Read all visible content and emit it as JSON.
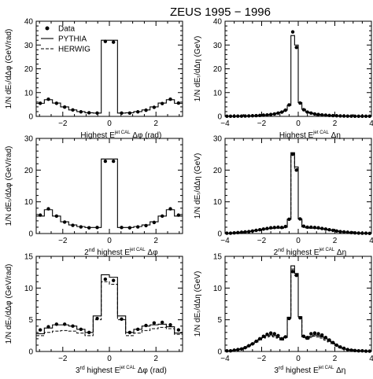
{
  "figure": {
    "title": "ZEUS 1995 − 1996",
    "legend": [
      {
        "label": "Data",
        "style": "dot"
      },
      {
        "label": "PYTHIA",
        "style": "solid"
      },
      {
        "label": "HERWIG",
        "style": "dashed"
      }
    ]
  },
  "chart_data": [
    {
      "type": "histogram",
      "variable": "dphi",
      "xlim": [
        -3.1416,
        3.1416
      ],
      "ylim": [
        0,
        40
      ],
      "xticks": [
        -2,
        0,
        2
      ],
      "yticks": [
        0,
        10,
        20,
        30,
        40
      ],
      "ylabel": "1/N dEₜ/dΔφ (GeV/rad)",
      "xlabel_prefix": "Highest E",
      "xlabel_sup": "jet CAL",
      "xlabel_var": "Δφ (rad)",
      "bin_width": 0.3491,
      "data": [
        5.5,
        7.2,
        5.5,
        3.9,
        2.7,
        1.9,
        1.5,
        1.4,
        31.5,
        31.2,
        1.4,
        1.4,
        1.9,
        2.6,
        3.8,
        5.4,
        7.2,
        5.6
      ],
      "pythia": [
        5.5,
        7.0,
        5.6,
        4.0,
        2.7,
        2.0,
        1.5,
        1.4,
        32.0,
        32.0,
        1.4,
        1.5,
        2.0,
        2.7,
        4.0,
        5.6,
        7.0,
        5.5
      ],
      "herwig": null
    },
    {
      "type": "histogram",
      "variable": "deta",
      "xlim": [
        -4,
        4
      ],
      "ylim": [
        0,
        40
      ],
      "xticks": [
        -4,
        -2,
        0,
        2,
        4
      ],
      "yticks": [
        0,
        10,
        20,
        30,
        40
      ],
      "ylabel": "1/N dEₜ/dΔη (GeV)",
      "xlabel_prefix": "Highest E",
      "xlabel_sup": "jet CAL",
      "xlabel_var": "Δη",
      "bin_width": 0.2,
      "data": [
        0.05,
        0.05,
        0.05,
        0.1,
        0.1,
        0.15,
        0.2,
        0.25,
        0.3,
        0.4,
        0.5,
        0.6,
        0.8,
        1.0,
        1.4,
        1.8,
        2.6,
        4.8,
        35.5,
        29.0,
        5.6,
        2.8,
        1.8,
        1.4,
        1.0,
        0.8,
        0.6,
        0.5,
        0.4,
        0.3,
        0.25,
        0.2,
        0.15,
        0.1,
        0.1,
        0.05,
        0.05,
        0.05,
        0.05,
        0.05
      ],
      "pythia": [
        0.05,
        0.05,
        0.05,
        0.1,
        0.1,
        0.15,
        0.2,
        0.25,
        0.3,
        0.4,
        0.5,
        0.6,
        0.8,
        1.0,
        1.4,
        1.8,
        2.6,
        4.6,
        34.0,
        30.0,
        5.8,
        3.0,
        1.8,
        1.4,
        1.0,
        0.8,
        0.6,
        0.5,
        0.4,
        0.3,
        0.25,
        0.2,
        0.15,
        0.1,
        0.1,
        0.05,
        0.05,
        0.05,
        0.05,
        0.05
      ],
      "herwig": null
    },
    {
      "type": "histogram",
      "variable": "dphi",
      "xlim": [
        -3.1416,
        3.1416
      ],
      "ylim": [
        0,
        30
      ],
      "xticks": [
        -2,
        0,
        2
      ],
      "yticks": [
        0,
        10,
        20,
        30
      ],
      "ylabel": "1/N dEₜ/dΔφ (GeV/rad)",
      "xlabel_prefix": "2",
      "xlabel_ord": "nd",
      "xlabel_mid": " highest E",
      "xlabel_sup": "jet CAL",
      "xlabel_var": "Δφ",
      "bin_width": 0.3491,
      "data": [
        5.8,
        7.8,
        5.5,
        3.6,
        2.6,
        2.1,
        1.8,
        1.9,
        22.8,
        22.8,
        1.9,
        1.8,
        2.1,
        2.5,
        3.5,
        5.5,
        7.8,
        5.8
      ],
      "pythia": [
        5.5,
        7.5,
        5.5,
        3.7,
        2.7,
        2.2,
        1.9,
        1.9,
        23.5,
        23.5,
        1.9,
        1.9,
        2.2,
        2.7,
        3.7,
        5.5,
        7.5,
        5.5
      ],
      "herwig": null
    },
    {
      "type": "histogram",
      "variable": "deta",
      "xlim": [
        -4,
        4
      ],
      "ylim": [
        0,
        30
      ],
      "xticks": [
        -4,
        -2,
        0,
        2,
        4
      ],
      "yticks": [
        0,
        10,
        20,
        30
      ],
      "ylabel": "1/N dEₜ/dΔη (GeV)",
      "xlabel_prefix": "2",
      "xlabel_ord": "nd",
      "xlabel_mid": " highest E",
      "xlabel_sup": "jet CAL",
      "xlabel_var": "Δη",
      "bin_width": 0.2,
      "data": [
        0.1,
        0.1,
        0.2,
        0.3,
        0.4,
        0.5,
        0.6,
        0.8,
        1.0,
        1.2,
        1.4,
        1.6,
        1.8,
        1.9,
        2.0,
        1.9,
        2.2,
        4.5,
        25.0,
        20.0,
        4.6,
        2.3,
        2.0,
        2.0,
        1.9,
        1.8,
        1.6,
        1.4,
        1.2,
        1.0,
        0.8,
        0.6,
        0.5,
        0.4,
        0.3,
        0.2,
        0.15,
        0.1,
        0.1,
        0.05
      ],
      "pythia": [
        0.1,
        0.1,
        0.2,
        0.3,
        0.4,
        0.5,
        0.6,
        0.8,
        1.0,
        1.1,
        1.3,
        1.5,
        1.6,
        1.7,
        1.8,
        1.7,
        2.0,
        4.5,
        25.5,
        21.0,
        4.6,
        2.1,
        1.8,
        1.7,
        1.7,
        1.6,
        1.5,
        1.3,
        1.1,
        1.0,
        0.8,
        0.6,
        0.5,
        0.4,
        0.3,
        0.2,
        0.15,
        0.1,
        0.1,
        0.05
      ],
      "herwig": [
        0.1,
        0.1,
        0.2,
        0.3,
        0.4,
        0.5,
        0.6,
        0.8,
        1.0,
        1.1,
        1.3,
        1.5,
        1.6,
        1.7,
        1.8,
        1.7,
        2.0,
        4.5,
        25.0,
        20.5,
        4.6,
        2.1,
        1.8,
        1.7,
        1.7,
        1.6,
        1.5,
        1.3,
        1.1,
        1.0,
        0.8,
        0.6,
        0.5,
        0.4,
        0.3,
        0.2,
        0.15,
        0.1,
        0.1,
        0.05
      ]
    },
    {
      "type": "histogram",
      "variable": "dphi",
      "xlim": [
        -3.1416,
        3.1416
      ],
      "ylim": [
        0,
        15
      ],
      "xticks": [
        -2,
        0,
        2
      ],
      "yticks": [
        0,
        5,
        10,
        15
      ],
      "ylabel": "1/N dEₜ/dΔφ (GeV/rad)",
      "xlabel_prefix": "3",
      "xlabel_ord": "rd",
      "xlabel_mid": " highest E",
      "xlabel_sup": "jet CAL",
      "xlabel_var": "Δφ (rad)",
      "bin_width": 0.3491,
      "data": [
        3.4,
        3.9,
        4.3,
        4.3,
        4.0,
        3.5,
        3.0,
        5.2,
        11.4,
        11.2,
        5.1,
        3.0,
        3.5,
        4.1,
        4.5,
        4.6,
        4.2,
        3.4
      ],
      "pythia": [
        2.8,
        3.7,
        4.2,
        4.2,
        4.0,
        3.5,
        3.0,
        5.6,
        12.1,
        11.7,
        5.6,
        3.0,
        3.5,
        4.0,
        4.2,
        4.3,
        3.9,
        2.9
      ],
      "herwig": [
        2.5,
        3.0,
        3.2,
        3.3,
        3.2,
        2.9,
        2.5,
        5.0,
        11.0,
        10.6,
        5.0,
        2.5,
        2.9,
        3.3,
        3.6,
        3.8,
        3.6,
        2.7
      ]
    },
    {
      "type": "histogram",
      "variable": "deta",
      "xlim": [
        -4,
        4
      ],
      "ylim": [
        0,
        15
      ],
      "xticks": [
        -4,
        -2,
        0,
        2,
        4
      ],
      "yticks": [
        0,
        5,
        10,
        15
      ],
      "ylabel": "1/N dEₜ/dΔη (GeV)",
      "xlabel_prefix": "3",
      "xlabel_ord": "rd",
      "xlabel_mid": " highest E",
      "xlabel_sup": "jet CAL",
      "xlabel_var": "Δη",
      "bin_width": 0.2,
      "data": [
        0.1,
        0.1,
        0.2,
        0.3,
        0.4,
        0.6,
        0.9,
        1.2,
        1.6,
        2.0,
        2.4,
        2.7,
        2.9,
        2.8,
        2.5,
        2.0,
        2.3,
        5.2,
        12.6,
        12.0,
        5.3,
        2.4,
        2.2,
        2.8,
        2.9,
        2.8,
        2.6,
        2.2,
        1.8,
        1.4,
        1.0,
        0.7,
        0.5,
        0.3,
        0.2,
        0.15,
        0.1,
        0.1,
        0.05,
        0.05
      ],
      "pythia": [
        0.1,
        0.1,
        0.2,
        0.3,
        0.4,
        0.6,
        0.9,
        1.2,
        1.5,
        1.9,
        2.2,
        2.5,
        2.6,
        2.5,
        2.2,
        1.9,
        2.3,
        5.4,
        13.5,
        12.3,
        5.5,
        2.3,
        2.0,
        2.4,
        2.6,
        2.5,
        2.3,
        2.0,
        1.6,
        1.3,
        0.9,
        0.6,
        0.4,
        0.3,
        0.2,
        0.15,
        0.1,
        0.1,
        0.05,
        0.05
      ],
      "herwig": [
        0.1,
        0.1,
        0.2,
        0.3,
        0.4,
        0.6,
        0.9,
        1.2,
        1.5,
        1.8,
        2.1,
        2.3,
        2.4,
        2.3,
        2.1,
        1.8,
        2.2,
        5.2,
        13.0,
        12.0,
        5.3,
        2.2,
        1.9,
        2.2,
        2.4,
        2.3,
        2.1,
        1.8,
        1.5,
        1.2,
        0.9,
        0.6,
        0.4,
        0.3,
        0.2,
        0.15,
        0.1,
        0.1,
        0.05,
        0.05
      ]
    }
  ]
}
